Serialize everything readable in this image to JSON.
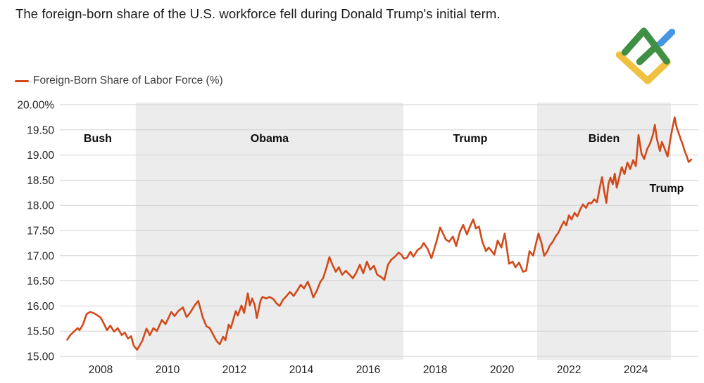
{
  "title": "The foreign-born share of the U.S. workforce fell during Donald Trump's initial term.",
  "legend": {
    "label": "Foreign-Born Share of Labor Force (%)"
  },
  "logo": {
    "name": "litefinance-logo",
    "green": "#3f8f44",
    "blue": "#4596e3",
    "yellow": "#f0c13e"
  },
  "colors": {
    "line": "#d14a1a",
    "band_shade": "#ececec",
    "gridline": "#d2d2d2",
    "axis_text": "#262626",
    "band_label_text": "#0d0d0d"
  },
  "chart_data": {
    "type": "line",
    "title": "Foreign-Born Share of Labor Force (%)",
    "xlabel": "",
    "ylabel": "",
    "xlim": [
      2006.78,
      2025.87
    ],
    "ylim": [
      15.0,
      20.0
    ],
    "grid": true,
    "legend_position": "top-left",
    "x_ticks": [
      2008,
      2010,
      2012,
      2014,
      2016,
      2018,
      2020,
      2022,
      2024
    ],
    "y_ticks": [
      {
        "value": 20.0,
        "label": "20.00%"
      },
      {
        "value": 19.5,
        "label": "19.50"
      },
      {
        "value": 19.0,
        "label": "19.00"
      },
      {
        "value": 18.5,
        "label": "18.50"
      },
      {
        "value": 18.0,
        "label": "18.00"
      },
      {
        "value": 17.5,
        "label": "17.50"
      },
      {
        "value": 17.0,
        "label": "17.00"
      },
      {
        "value": 16.5,
        "label": "16.50"
      },
      {
        "value": 16.0,
        "label": "16.00"
      },
      {
        "value": 15.5,
        "label": "15.50"
      },
      {
        "value": 15.0,
        "label": "15.00"
      }
    ],
    "bands": [
      {
        "label": "Bush",
        "start": 2006.78,
        "end": 2009.05,
        "shaded": false
      },
      {
        "label": "Obama",
        "start": 2009.05,
        "end": 2017.05,
        "shaded": true
      },
      {
        "label": "Trump",
        "start": 2017.05,
        "end": 2021.05,
        "shaded": false
      },
      {
        "label": "Biden",
        "start": 2021.05,
        "end": 2025.05,
        "shaded": true
      },
      {
        "label": "Trump",
        "start": 2025.05,
        "end": 2025.87,
        "shaded": false
      }
    ],
    "series": [
      {
        "name": "Foreign-Born Share of Labor Force (%)",
        "color": "#d14a1a",
        "points": [
          [
            2007.0,
            15.33
          ],
          [
            2007.09,
            15.42
          ],
          [
            2007.2,
            15.49
          ],
          [
            2007.31,
            15.56
          ],
          [
            2007.37,
            15.52
          ],
          [
            2007.47,
            15.63
          ],
          [
            2007.58,
            15.84
          ],
          [
            2007.68,
            15.88
          ],
          [
            2007.79,
            15.86
          ],
          [
            2007.89,
            15.82
          ],
          [
            2008.0,
            15.77
          ],
          [
            2008.11,
            15.63
          ],
          [
            2008.19,
            15.52
          ],
          [
            2008.29,
            15.61
          ],
          [
            2008.4,
            15.49
          ],
          [
            2008.51,
            15.56
          ],
          [
            2008.63,
            15.42
          ],
          [
            2008.72,
            15.47
          ],
          [
            2008.82,
            15.35
          ],
          [
            2008.91,
            15.4
          ],
          [
            2008.99,
            15.21
          ],
          [
            2009.09,
            15.13
          ],
          [
            2009.24,
            15.3
          ],
          [
            2009.37,
            15.55
          ],
          [
            2009.47,
            15.42
          ],
          [
            2009.58,
            15.56
          ],
          [
            2009.68,
            15.5
          ],
          [
            2009.83,
            15.72
          ],
          [
            2009.94,
            15.64
          ],
          [
            2010.11,
            15.88
          ],
          [
            2010.21,
            15.8
          ],
          [
            2010.32,
            15.9
          ],
          [
            2010.46,
            15.97
          ],
          [
            2010.57,
            15.78
          ],
          [
            2010.67,
            15.86
          ],
          [
            2010.82,
            16.02
          ],
          [
            2010.92,
            16.1
          ],
          [
            2011.05,
            15.78
          ],
          [
            2011.16,
            15.6
          ],
          [
            2011.26,
            15.56
          ],
          [
            2011.37,
            15.42
          ],
          [
            2011.47,
            15.3
          ],
          [
            2011.56,
            15.24
          ],
          [
            2011.66,
            15.39
          ],
          [
            2011.73,
            15.32
          ],
          [
            2011.83,
            15.63
          ],
          [
            2011.89,
            15.56
          ],
          [
            2012.04,
            15.9
          ],
          [
            2012.1,
            15.81
          ],
          [
            2012.21,
            16.01
          ],
          [
            2012.29,
            15.86
          ],
          [
            2012.4,
            16.25
          ],
          [
            2012.46,
            16.01
          ],
          [
            2012.53,
            16.15
          ],
          [
            2012.61,
            16.01
          ],
          [
            2012.67,
            15.76
          ],
          [
            2012.78,
            16.11
          ],
          [
            2012.84,
            16.18
          ],
          [
            2012.95,
            16.15
          ],
          [
            2013.05,
            16.18
          ],
          [
            2013.16,
            16.14
          ],
          [
            2013.26,
            16.05
          ],
          [
            2013.35,
            16.0
          ],
          [
            2013.45,
            16.12
          ],
          [
            2013.56,
            16.2
          ],
          [
            2013.66,
            16.28
          ],
          [
            2013.77,
            16.2
          ],
          [
            2013.87,
            16.3
          ],
          [
            2013.98,
            16.42
          ],
          [
            2014.08,
            16.35
          ],
          [
            2014.19,
            16.48
          ],
          [
            2014.27,
            16.35
          ],
          [
            2014.36,
            16.17
          ],
          [
            2014.46,
            16.3
          ],
          [
            2014.57,
            16.48
          ],
          [
            2014.65,
            16.55
          ],
          [
            2014.76,
            16.78
          ],
          [
            2014.84,
            16.97
          ],
          [
            2014.93,
            16.82
          ],
          [
            2015.03,
            16.68
          ],
          [
            2015.12,
            16.77
          ],
          [
            2015.22,
            16.62
          ],
          [
            2015.33,
            16.7
          ],
          [
            2015.43,
            16.63
          ],
          [
            2015.54,
            16.55
          ],
          [
            2015.64,
            16.66
          ],
          [
            2015.75,
            16.82
          ],
          [
            2015.85,
            16.65
          ],
          [
            2015.96,
            16.88
          ],
          [
            2016.06,
            16.72
          ],
          [
            2016.17,
            16.8
          ],
          [
            2016.27,
            16.62
          ],
          [
            2016.38,
            16.58
          ],
          [
            2016.48,
            16.52
          ],
          [
            2016.59,
            16.82
          ],
          [
            2016.69,
            16.92
          ],
          [
            2016.8,
            16.98
          ],
          [
            2016.91,
            17.06
          ],
          [
            2016.99,
            17.02
          ],
          [
            2017.07,
            16.94
          ],
          [
            2017.16,
            16.96
          ],
          [
            2017.26,
            17.08
          ],
          [
            2017.35,
            16.98
          ],
          [
            2017.47,
            17.11
          ],
          [
            2017.58,
            17.16
          ],
          [
            2017.66,
            17.25
          ],
          [
            2017.77,
            17.14
          ],
          [
            2017.89,
            16.95
          ],
          [
            2018.04,
            17.28
          ],
          [
            2018.15,
            17.56
          ],
          [
            2018.23,
            17.45
          ],
          [
            2018.32,
            17.32
          ],
          [
            2018.42,
            17.28
          ],
          [
            2018.53,
            17.38
          ],
          [
            2018.63,
            17.19
          ],
          [
            2018.74,
            17.47
          ],
          [
            2018.84,
            17.61
          ],
          [
            2018.95,
            17.42
          ],
          [
            2019.03,
            17.56
          ],
          [
            2019.14,
            17.72
          ],
          [
            2019.22,
            17.54
          ],
          [
            2019.31,
            17.58
          ],
          [
            2019.41,
            17.28
          ],
          [
            2019.52,
            17.09
          ],
          [
            2019.6,
            17.16
          ],
          [
            2019.68,
            17.1
          ],
          [
            2019.77,
            17.02
          ],
          [
            2019.87,
            17.3
          ],
          [
            2019.98,
            17.16
          ],
          [
            2020.08,
            17.44
          ],
          [
            2020.21,
            16.84
          ],
          [
            2020.32,
            16.88
          ],
          [
            2020.4,
            16.77
          ],
          [
            2020.51,
            16.86
          ],
          [
            2020.63,
            16.68
          ],
          [
            2020.72,
            16.7
          ],
          [
            2020.82,
            17.09
          ],
          [
            2020.93,
            17.0
          ],
          [
            2021.03,
            17.28
          ],
          [
            2021.09,
            17.44
          ],
          [
            2021.18,
            17.25
          ],
          [
            2021.26,
            17.0
          ],
          [
            2021.35,
            17.08
          ],
          [
            2021.43,
            17.2
          ],
          [
            2021.52,
            17.28
          ],
          [
            2021.6,
            17.38
          ],
          [
            2021.68,
            17.45
          ],
          [
            2021.77,
            17.58
          ],
          [
            2021.85,
            17.68
          ],
          [
            2021.92,
            17.6
          ],
          [
            2022.0,
            17.8
          ],
          [
            2022.08,
            17.72
          ],
          [
            2022.17,
            17.85
          ],
          [
            2022.25,
            17.78
          ],
          [
            2022.34,
            17.92
          ],
          [
            2022.42,
            18.02
          ],
          [
            2022.51,
            17.95
          ],
          [
            2022.59,
            18.05
          ],
          [
            2022.67,
            18.04
          ],
          [
            2022.76,
            18.12
          ],
          [
            2022.84,
            18.06
          ],
          [
            2022.93,
            18.38
          ],
          [
            2022.99,
            18.56
          ],
          [
            2023.05,
            18.3
          ],
          [
            2023.12,
            18.05
          ],
          [
            2023.18,
            18.42
          ],
          [
            2023.24,
            18.55
          ],
          [
            2023.31,
            18.42
          ],
          [
            2023.37,
            18.63
          ],
          [
            2023.43,
            18.35
          ],
          [
            2023.52,
            18.6
          ],
          [
            2023.58,
            18.76
          ],
          [
            2023.66,
            18.62
          ],
          [
            2023.75,
            18.85
          ],
          [
            2023.83,
            18.72
          ],
          [
            2023.92,
            18.9
          ],
          [
            2024.0,
            18.78
          ],
          [
            2024.08,
            19.4
          ],
          [
            2024.17,
            19.03
          ],
          [
            2024.25,
            18.92
          ],
          [
            2024.34,
            19.12
          ],
          [
            2024.42,
            19.22
          ],
          [
            2024.51,
            19.4
          ],
          [
            2024.57,
            19.6
          ],
          [
            2024.63,
            19.32
          ],
          [
            2024.72,
            19.08
          ],
          [
            2024.78,
            19.26
          ],
          [
            2024.86,
            19.13
          ],
          [
            2024.95,
            18.97
          ],
          [
            2025.03,
            19.3
          ],
          [
            2025.09,
            19.52
          ],
          [
            2025.16,
            19.75
          ],
          [
            2025.22,
            19.55
          ],
          [
            2025.31,
            19.38
          ],
          [
            2025.35,
            19.3
          ],
          [
            2025.41,
            19.2
          ],
          [
            2025.45,
            19.1
          ],
          [
            2025.52,
            18.98
          ],
          [
            2025.58,
            18.86
          ],
          [
            2025.66,
            18.91
          ]
        ]
      }
    ]
  }
}
